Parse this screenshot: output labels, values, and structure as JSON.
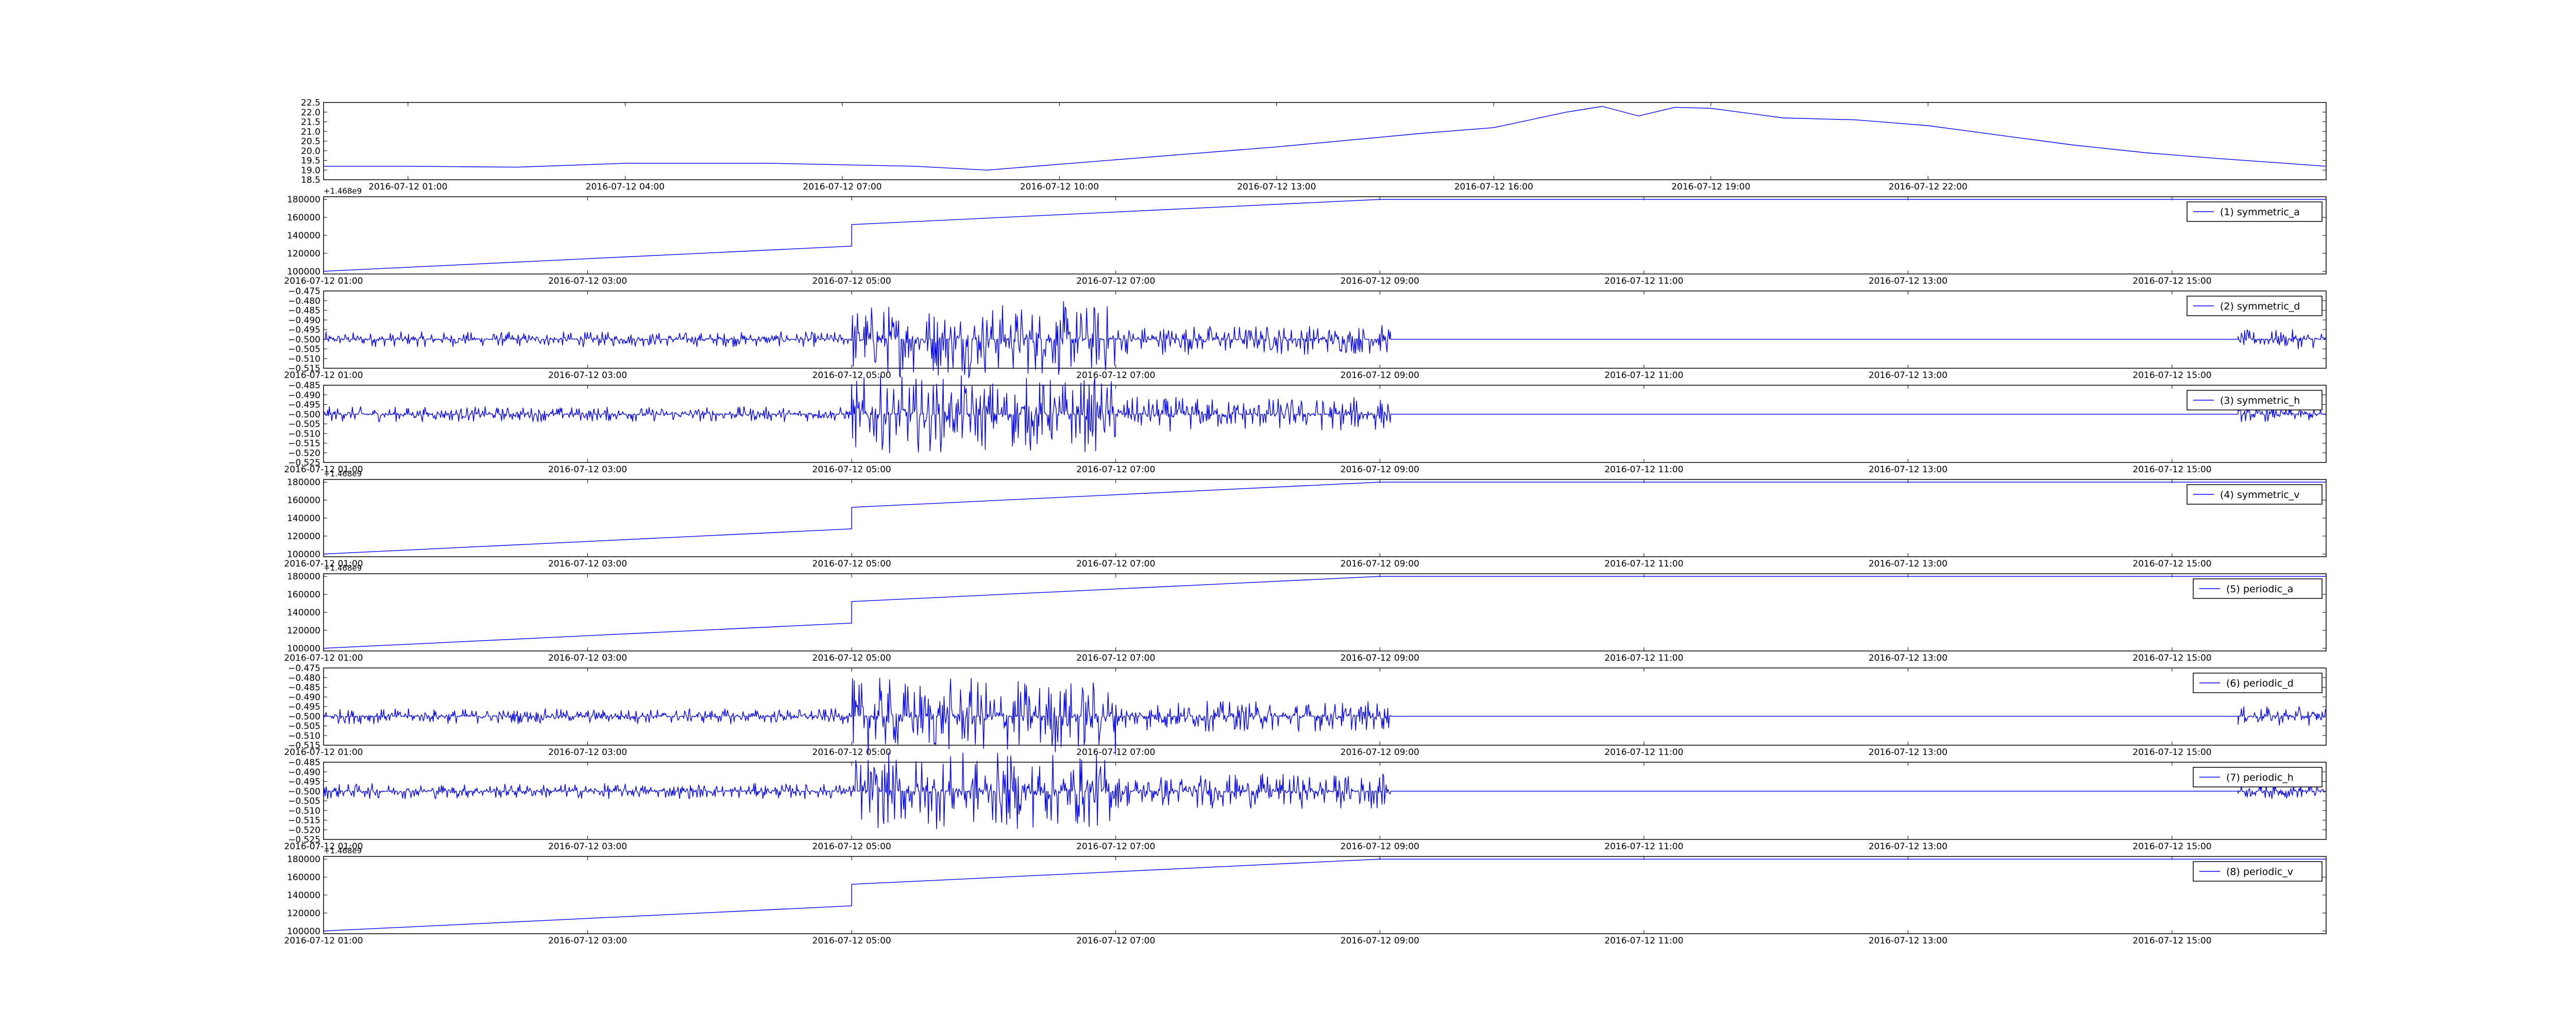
{
  "figure": {
    "background": "#ffffff",
    "line_color": "#0000ff",
    "axes_color": "#000000",
    "legend_border_color": "#000000"
  },
  "chart_data": [
    {
      "type": "line",
      "title": "",
      "xlabel": "",
      "ylabel": "",
      "x_ticks": [
        "2016-07-12 01:00",
        "2016-07-12 04:00",
        "2016-07-12 07:00",
        "2016-07-12 10:00",
        "2016-07-12 13:00",
        "2016-07-12 16:00",
        "2016-07-12 19:00",
        "2016-07-12 22:00"
      ],
      "x_range": [
        "2016-07-11 23:50",
        "2016-07-13 03:30"
      ],
      "y_ticks": [
        "18.5",
        "19.0",
        "19.5",
        "20.0",
        "20.5",
        "21.0",
        "21.5",
        "22.0",
        "22.5"
      ],
      "ylim": [
        18.5,
        22.5
      ],
      "grid": false,
      "legend": null,
      "series": [
        {
          "color": "#0000ff",
          "x": [
            "2016-07-11 23:50",
            "2016-07-12 01:00",
            "2016-07-12 02:30",
            "2016-07-12 04:00",
            "2016-07-12 06:00",
            "2016-07-12 08:00",
            "2016-07-12 09:00",
            "2016-07-12 11:00",
            "2016-07-12 13:00",
            "2016-07-12 15:00",
            "2016-07-12 16:00",
            "2016-07-12 17:00",
            "2016-07-12 17:30",
            "2016-07-12 18:00",
            "2016-07-12 18:30",
            "2016-07-12 19:00",
            "2016-07-12 20:00",
            "2016-07-12 21:00",
            "2016-07-12 22:00",
            "2016-07-12 23:00",
            "2016-07-13 00:00",
            "2016-07-13 01:00",
            "2016-07-13 02:00",
            "2016-07-13 03:30"
          ],
          "y": [
            19.2,
            19.2,
            19.15,
            19.35,
            19.35,
            19.2,
            19.0,
            19.6,
            20.2,
            20.9,
            21.2,
            22.0,
            22.3,
            21.8,
            22.25,
            22.2,
            21.7,
            21.6,
            21.3,
            20.8,
            20.3,
            19.9,
            19.6,
            19.2
          ]
        }
      ]
    },
    {
      "type": "line",
      "title": "",
      "xlabel": "",
      "ylabel": "",
      "offset_text": "+1.468e9",
      "x_ticks": [
        "2016-07-12 01:00",
        "2016-07-12 03:00",
        "2016-07-12 05:00",
        "2016-07-12 07:00",
        "2016-07-12 09:00",
        "2016-07-12 11:00",
        "2016-07-12 13:00",
        "2016-07-12 15:00"
      ],
      "x_range": [
        "2016-07-12 01:00",
        "2016-07-12 16:10"
      ],
      "y_ticks": [
        "100000",
        "120000",
        "140000",
        "160000",
        "180000"
      ],
      "ylim": [
        97000,
        183000
      ],
      "grid": false,
      "legend": "top-right",
      "series": [
        {
          "name": "(1) symmetric_a",
          "color": "#0000ff",
          "x": [
            "2016-07-12 01:00",
            "2016-07-12 05:00",
            "2016-07-12 05:00",
            "2016-07-12 09:00",
            "2016-07-12 16:10"
          ],
          "y": [
            100000,
            128000,
            152000,
            180000,
            180000
          ]
        }
      ]
    },
    {
      "type": "line",
      "title": "",
      "xlabel": "",
      "ylabel": "",
      "x_ticks": [
        "2016-07-12 01:00",
        "2016-07-12 03:00",
        "2016-07-12 05:00",
        "2016-07-12 07:00",
        "2016-07-12 09:00",
        "2016-07-12 11:00",
        "2016-07-12 13:00",
        "2016-07-12 15:00"
      ],
      "x_range": [
        "2016-07-12 01:00",
        "2016-07-12 16:10"
      ],
      "y_ticks": [
        "−0.515",
        "−0.510",
        "−0.505",
        "−0.500",
        "−0.495",
        "−0.490",
        "−0.485",
        "−0.480",
        "−0.475"
      ],
      "ylim": [
        -0.515,
        -0.475
      ],
      "grid": false,
      "legend": "top-right",
      "series": [
        {
          "name": "(2) symmetric_d",
          "color": "#0000ff",
          "baseline": -0.5,
          "noise": [
            {
              "x_start": "2016-07-12 01:00",
              "x_end": "2016-07-12 05:00",
              "amplitude": 0.004
            },
            {
              "x_start": "2016-07-12 05:00",
              "x_end": "2016-07-12 07:00",
              "amplitude": 0.02
            },
            {
              "x_start": "2016-07-12 07:00",
              "x_end": "2016-07-12 09:05",
              "amplitude": 0.008
            },
            {
              "x_start": "2016-07-12 09:05",
              "x_end": "2016-07-12 15:30",
              "amplitude": 0
            },
            {
              "x_start": "2016-07-12 15:30",
              "x_end": "2016-07-12 16:10",
              "amplitude": 0.005
            }
          ]
        }
      ]
    },
    {
      "type": "line",
      "title": "",
      "xlabel": "",
      "ylabel": "",
      "x_ticks": [
        "2016-07-12 01:00",
        "2016-07-12 03:00",
        "2016-07-12 05:00",
        "2016-07-12 07:00",
        "2016-07-12 09:00",
        "2016-07-12 11:00",
        "2016-07-12 13:00",
        "2016-07-12 15:00"
      ],
      "x_range": [
        "2016-07-12 01:00",
        "2016-07-12 16:10"
      ],
      "y_ticks": [
        "−0.525",
        "−0.520",
        "−0.515",
        "−0.510",
        "−0.505",
        "−0.500",
        "−0.495",
        "−0.490",
        "−0.485"
      ],
      "ylim": [
        -0.525,
        -0.485
      ],
      "grid": false,
      "legend": "top-right",
      "series": [
        {
          "name": "(3) symmetric_h",
          "color": "#0000ff",
          "baseline": -0.5,
          "noise": [
            {
              "x_start": "2016-07-12 01:00",
              "x_end": "2016-07-12 05:00",
              "amplitude": 0.004
            },
            {
              "x_start": "2016-07-12 05:00",
              "x_end": "2016-07-12 07:00",
              "amplitude": 0.02
            },
            {
              "x_start": "2016-07-12 07:00",
              "x_end": "2016-07-12 09:05",
              "amplitude": 0.009
            },
            {
              "x_start": "2016-07-12 09:05",
              "x_end": "2016-07-12 15:30",
              "amplitude": 0
            },
            {
              "x_start": "2016-07-12 15:30",
              "x_end": "2016-07-12 16:10",
              "amplitude": 0.004
            }
          ]
        }
      ]
    },
    {
      "type": "line",
      "title": "",
      "xlabel": "",
      "ylabel": "",
      "offset_text": "+1.468e9",
      "x_ticks": [
        "2016-07-12 01:00",
        "2016-07-12 03:00",
        "2016-07-12 05:00",
        "2016-07-12 07:00",
        "2016-07-12 09:00",
        "2016-07-12 11:00",
        "2016-07-12 13:00",
        "2016-07-12 15:00"
      ],
      "x_range": [
        "2016-07-12 01:00",
        "2016-07-12 16:10"
      ],
      "y_ticks": [
        "100000",
        "120000",
        "140000",
        "160000",
        "180000"
      ],
      "ylim": [
        97000,
        183000
      ],
      "grid": false,
      "legend": "top-right",
      "series": [
        {
          "name": "(4) symmetric_v",
          "color": "#0000ff",
          "x": [
            "2016-07-12 01:00",
            "2016-07-12 05:00",
            "2016-07-12 05:00",
            "2016-07-12 09:00",
            "2016-07-12 16:10"
          ],
          "y": [
            100000,
            128000,
            152000,
            180000,
            180000
          ]
        }
      ]
    },
    {
      "type": "line",
      "title": "",
      "xlabel": "",
      "ylabel": "",
      "offset_text": "+1.468e9",
      "x_ticks": [
        "2016-07-12 01:00",
        "2016-07-12 03:00",
        "2016-07-12 05:00",
        "2016-07-12 07:00",
        "2016-07-12 09:00",
        "2016-07-12 11:00",
        "2016-07-12 13:00",
        "2016-07-12 15:00"
      ],
      "x_range": [
        "2016-07-12 01:00",
        "2016-07-12 16:10"
      ],
      "y_ticks": [
        "100000",
        "120000",
        "140000",
        "160000",
        "180000"
      ],
      "ylim": [
        97000,
        183000
      ],
      "grid": false,
      "legend": "top-right",
      "series": [
        {
          "name": "(5) periodic_a",
          "color": "#0000ff",
          "x": [
            "2016-07-12 01:00",
            "2016-07-12 05:00",
            "2016-07-12 05:00",
            "2016-07-12 09:00",
            "2016-07-12 16:10"
          ],
          "y": [
            100000,
            128000,
            152000,
            180000,
            180000
          ]
        }
      ]
    },
    {
      "type": "line",
      "title": "",
      "xlabel": "",
      "ylabel": "",
      "x_ticks": [
        "2016-07-12 01:00",
        "2016-07-12 03:00",
        "2016-07-12 05:00",
        "2016-07-12 07:00",
        "2016-07-12 09:00",
        "2016-07-12 11:00",
        "2016-07-12 13:00",
        "2016-07-12 15:00"
      ],
      "x_range": [
        "2016-07-12 01:00",
        "2016-07-12 16:10"
      ],
      "y_ticks": [
        "−0.515",
        "−0.510",
        "−0.505",
        "−0.500",
        "−0.495",
        "−0.490",
        "−0.485",
        "−0.480",
        "−0.475"
      ],
      "ylim": [
        -0.515,
        -0.475
      ],
      "grid": false,
      "legend": "top-right",
      "series": [
        {
          "name": "(6) periodic_d",
          "color": "#0000ff",
          "baseline": -0.5,
          "noise": [
            {
              "x_start": "2016-07-12 01:00",
              "x_end": "2016-07-12 05:00",
              "amplitude": 0.004
            },
            {
              "x_start": "2016-07-12 05:00",
              "x_end": "2016-07-12 07:00",
              "amplitude": 0.02
            },
            {
              "x_start": "2016-07-12 07:00",
              "x_end": "2016-07-12 09:05",
              "amplitude": 0.008
            },
            {
              "x_start": "2016-07-12 09:05",
              "x_end": "2016-07-12 15:30",
              "amplitude": 0
            },
            {
              "x_start": "2016-07-12 15:30",
              "x_end": "2016-07-12 16:10",
              "amplitude": 0.005
            }
          ]
        }
      ]
    },
    {
      "type": "line",
      "title": "",
      "xlabel": "",
      "ylabel": "",
      "x_ticks": [
        "2016-07-12 01:00",
        "2016-07-12 03:00",
        "2016-07-12 05:00",
        "2016-07-12 07:00",
        "2016-07-12 09:00",
        "2016-07-12 11:00",
        "2016-07-12 13:00",
        "2016-07-12 15:00"
      ],
      "x_range": [
        "2016-07-12 01:00",
        "2016-07-12 16:10"
      ],
      "y_ticks": [
        "−0.525",
        "−0.520",
        "−0.515",
        "−0.510",
        "−0.505",
        "−0.500",
        "−0.495",
        "−0.490",
        "−0.485"
      ],
      "ylim": [
        -0.525,
        -0.485
      ],
      "grid": false,
      "legend": "top-right",
      "series": [
        {
          "name": "(7) periodic_h",
          "color": "#0000ff",
          "baseline": -0.5,
          "noise": [
            {
              "x_start": "2016-07-12 01:00",
              "x_end": "2016-07-12 05:00",
              "amplitude": 0.004
            },
            {
              "x_start": "2016-07-12 05:00",
              "x_end": "2016-07-12 07:00",
              "amplitude": 0.02
            },
            {
              "x_start": "2016-07-12 07:00",
              "x_end": "2016-07-12 09:05",
              "amplitude": 0.009
            },
            {
              "x_start": "2016-07-12 09:05",
              "x_end": "2016-07-12 15:30",
              "amplitude": 0
            },
            {
              "x_start": "2016-07-12 15:30",
              "x_end": "2016-07-12 16:10",
              "amplitude": 0.004
            }
          ]
        }
      ]
    },
    {
      "type": "line",
      "title": "",
      "xlabel": "",
      "ylabel": "",
      "offset_text": "+1.468e9",
      "x_ticks": [
        "2016-07-12 01:00",
        "2016-07-12 03:00",
        "2016-07-12 05:00",
        "2016-07-12 07:00",
        "2016-07-12 09:00",
        "2016-07-12 11:00",
        "2016-07-12 13:00",
        "2016-07-12 15:00"
      ],
      "x_range": [
        "2016-07-12 01:00",
        "2016-07-12 16:10"
      ],
      "y_ticks": [
        "100000",
        "120000",
        "140000",
        "160000",
        "180000"
      ],
      "ylim": [
        97000,
        183000
      ],
      "grid": false,
      "legend": "top-right",
      "series": [
        {
          "name": "(8) periodic_v",
          "color": "#0000ff",
          "x": [
            "2016-07-12 01:00",
            "2016-07-12 05:00",
            "2016-07-12 05:00",
            "2016-07-12 09:00",
            "2016-07-12 16:10"
          ],
          "y": [
            100000,
            128000,
            152000,
            180000,
            180000
          ]
        }
      ]
    }
  ]
}
